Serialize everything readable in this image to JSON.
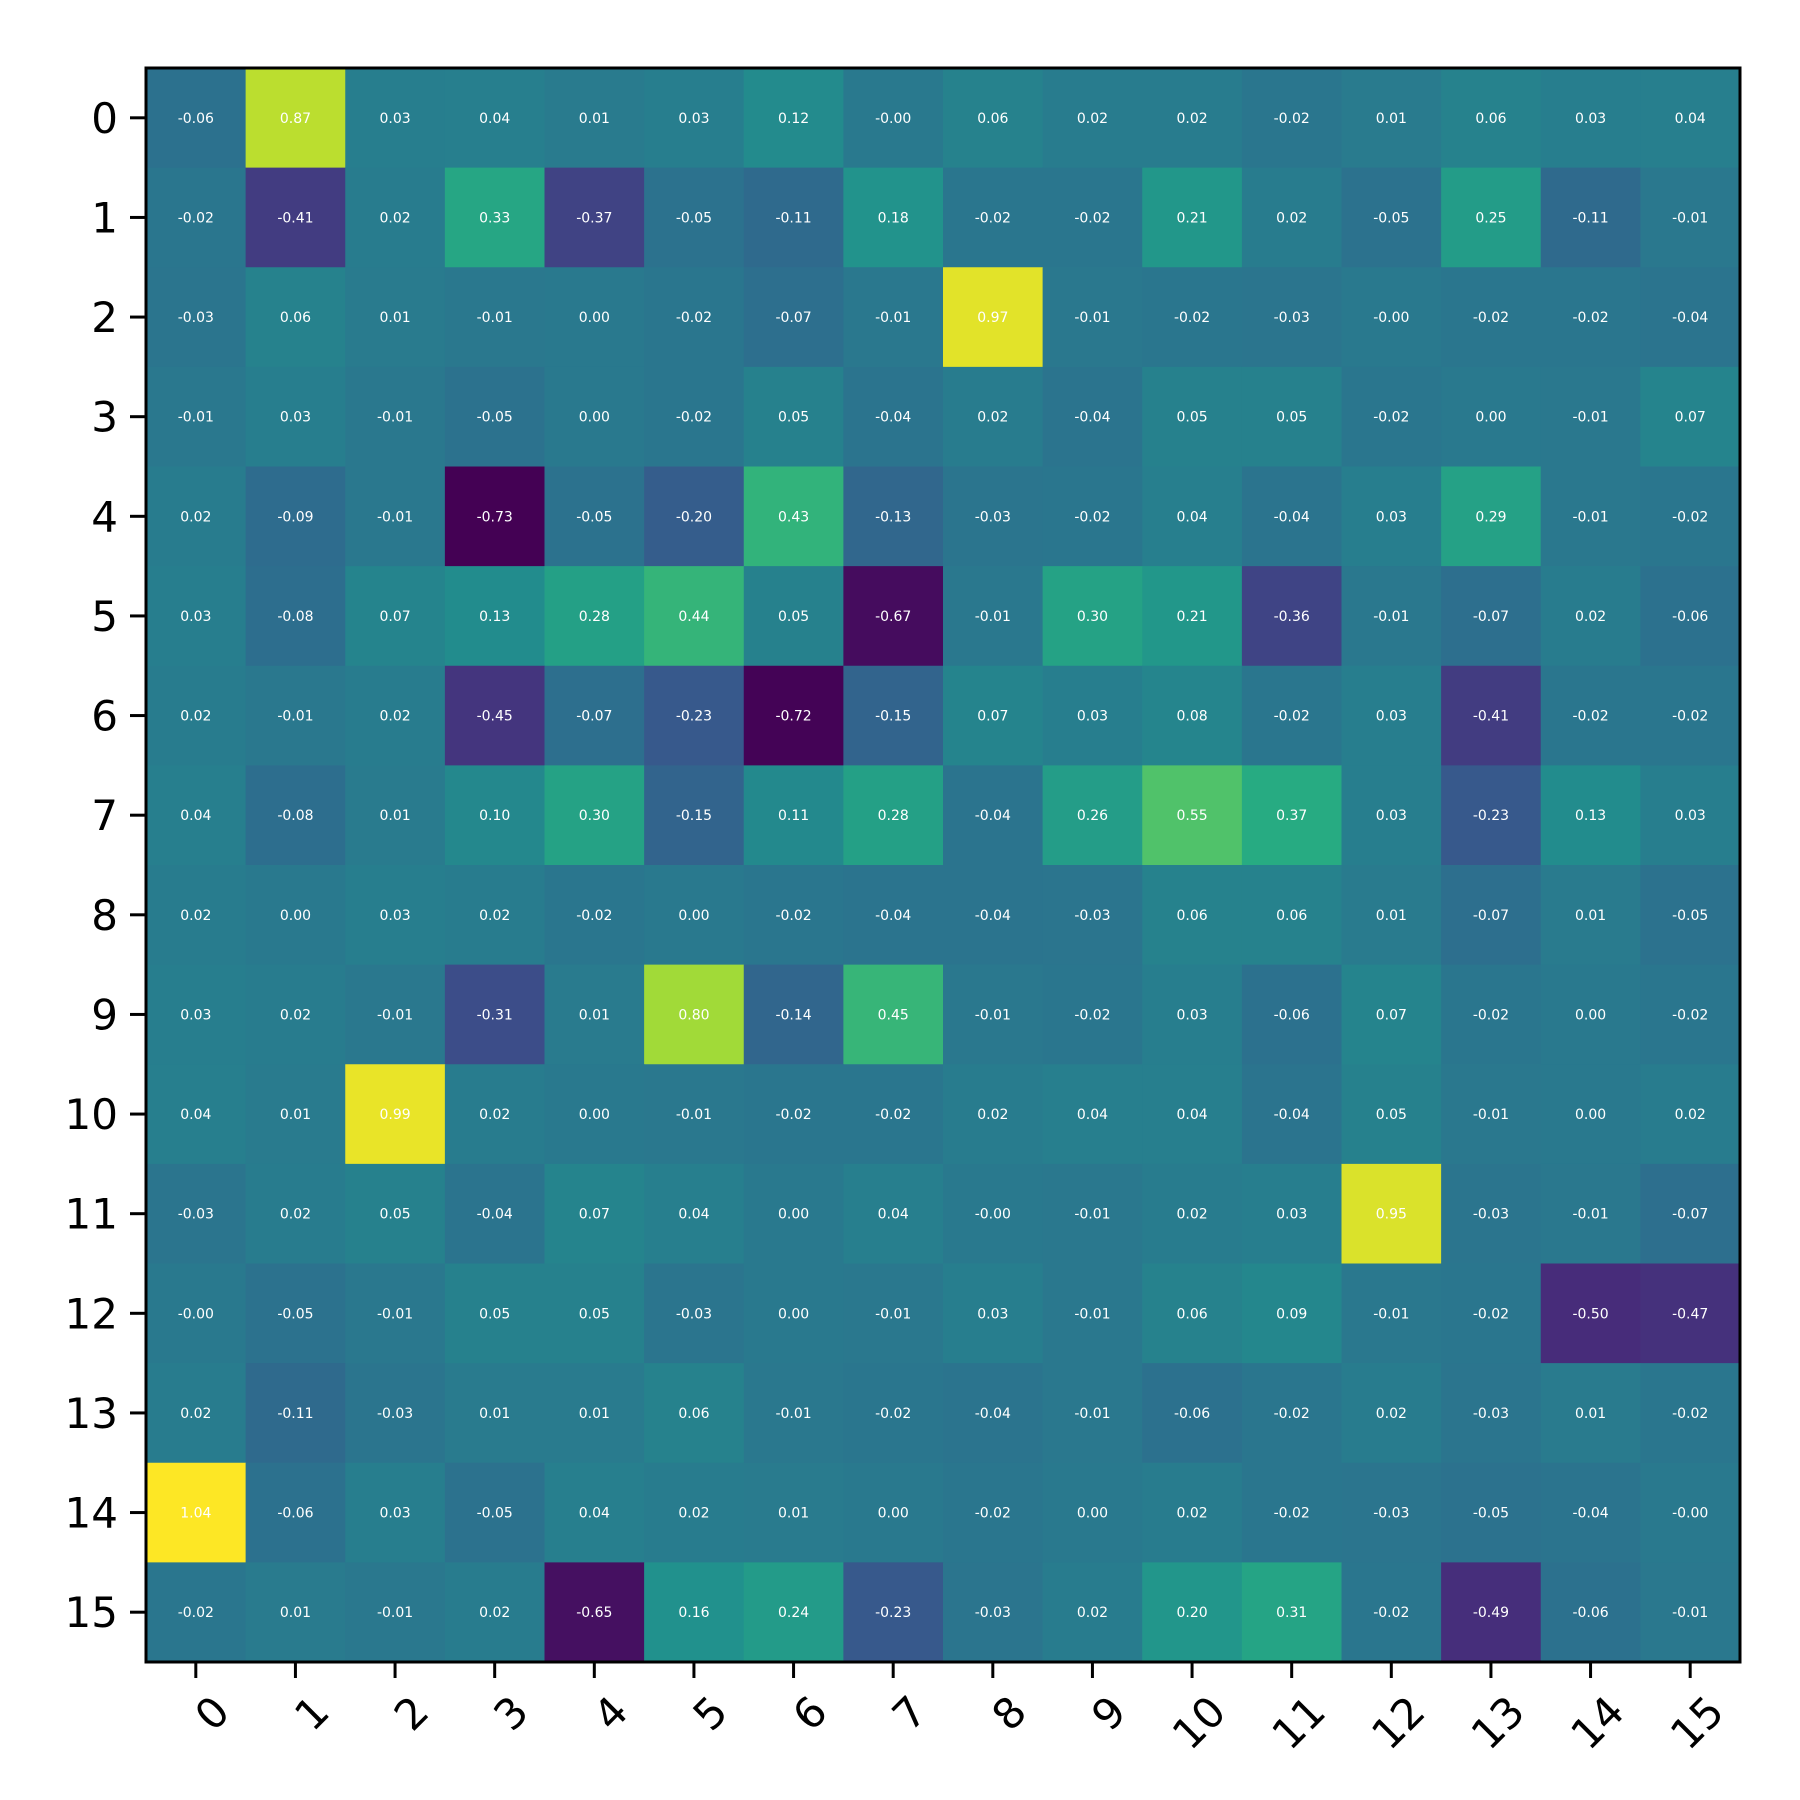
{
  "chart_data": {
    "type": "heatmap",
    "title": "",
    "xlabel": "",
    "ylabel": "",
    "colormap": "viridis",
    "value_range": [
      -0.73,
      1.04
    ],
    "grid": false,
    "x_tick_labels": [
      "0",
      "1",
      "2",
      "3",
      "4",
      "5",
      "6",
      "7",
      "8",
      "9",
      "10",
      "11",
      "12",
      "13",
      "14",
      "15"
    ],
    "y_tick_labels": [
      "0",
      "1",
      "2",
      "3",
      "4",
      "5",
      "6",
      "7",
      "8",
      "9",
      "10",
      "11",
      "12",
      "13",
      "14",
      "15"
    ],
    "values": [
      [
        -0.06,
        0.87,
        0.03,
        0.04,
        0.01,
        0.03,
        0.12,
        -0.0,
        0.06,
        0.02,
        0.02,
        -0.02,
        0.01,
        0.06,
        0.03,
        0.04
      ],
      [
        -0.02,
        -0.41,
        0.02,
        0.33,
        -0.37,
        -0.05,
        -0.11,
        0.18,
        -0.02,
        -0.02,
        0.21,
        0.02,
        -0.05,
        0.25,
        -0.11,
        -0.01
      ],
      [
        -0.03,
        0.06,
        0.01,
        -0.01,
        0.0,
        -0.02,
        -0.07,
        -0.01,
        0.97,
        -0.01,
        -0.02,
        -0.03,
        -0.0,
        -0.02,
        -0.02,
        -0.04
      ],
      [
        -0.01,
        0.03,
        -0.01,
        -0.05,
        0.0,
        -0.02,
        0.05,
        -0.04,
        0.02,
        -0.04,
        0.05,
        0.05,
        -0.02,
        0.0,
        -0.01,
        0.07
      ],
      [
        0.02,
        -0.09,
        -0.01,
        -0.73,
        -0.05,
        -0.2,
        0.43,
        -0.13,
        -0.03,
        -0.02,
        0.04,
        -0.04,
        0.03,
        0.29,
        -0.01,
        -0.02
      ],
      [
        0.03,
        -0.08,
        0.07,
        0.13,
        0.28,
        0.44,
        0.05,
        -0.67,
        -0.01,
        0.3,
        0.21,
        -0.36,
        -0.01,
        -0.07,
        0.02,
        -0.06
      ],
      [
        0.02,
        -0.01,
        0.02,
        -0.45,
        -0.07,
        -0.23,
        -0.72,
        -0.15,
        0.07,
        0.03,
        0.08,
        -0.02,
        0.03,
        -0.41,
        -0.02,
        -0.02
      ],
      [
        0.04,
        -0.08,
        0.01,
        0.1,
        0.3,
        -0.15,
        0.11,
        0.28,
        -0.04,
        0.26,
        0.55,
        0.37,
        0.03,
        -0.23,
        0.13,
        0.03
      ],
      [
        0.02,
        0.0,
        0.03,
        0.02,
        -0.02,
        0.0,
        -0.02,
        -0.04,
        -0.04,
        -0.03,
        0.06,
        0.06,
        0.01,
        -0.07,
        0.01,
        -0.05
      ],
      [
        0.03,
        0.02,
        -0.01,
        -0.31,
        0.01,
        0.8,
        -0.14,
        0.45,
        -0.01,
        -0.02,
        0.03,
        -0.06,
        0.07,
        -0.02,
        0.0,
        -0.02
      ],
      [
        0.04,
        0.01,
        0.99,
        0.02,
        0.0,
        -0.01,
        -0.02,
        -0.02,
        0.02,
        0.04,
        0.04,
        -0.04,
        0.05,
        -0.01,
        0.0,
        0.02
      ],
      [
        -0.03,
        0.02,
        0.05,
        -0.04,
        0.07,
        0.04,
        0.0,
        0.04,
        -0.0,
        -0.01,
        0.02,
        0.03,
        0.95,
        -0.03,
        -0.01,
        -0.07
      ],
      [
        -0.0,
        -0.05,
        -0.01,
        0.05,
        0.05,
        -0.03,
        0.0,
        -0.01,
        0.03,
        -0.01,
        0.06,
        0.09,
        -0.01,
        -0.02,
        -0.5,
        -0.47
      ],
      [
        0.02,
        -0.11,
        -0.03,
        0.01,
        0.01,
        0.06,
        -0.01,
        -0.02,
        -0.04,
        -0.01,
        -0.06,
        -0.02,
        0.02,
        -0.03,
        0.01,
        -0.02
      ],
      [
        1.04,
        -0.06,
        0.03,
        -0.05,
        0.04,
        0.02,
        0.01,
        0.0,
        -0.02,
        0.0,
        0.02,
        -0.02,
        -0.03,
        -0.05,
        -0.04,
        -0.0
      ],
      [
        -0.02,
        0.01,
        -0.01,
        0.02,
        -0.65,
        0.16,
        0.24,
        -0.23,
        -0.03,
        0.02,
        0.2,
        0.31,
        -0.02,
        -0.49,
        -0.06,
        -0.01
      ]
    ]
  }
}
